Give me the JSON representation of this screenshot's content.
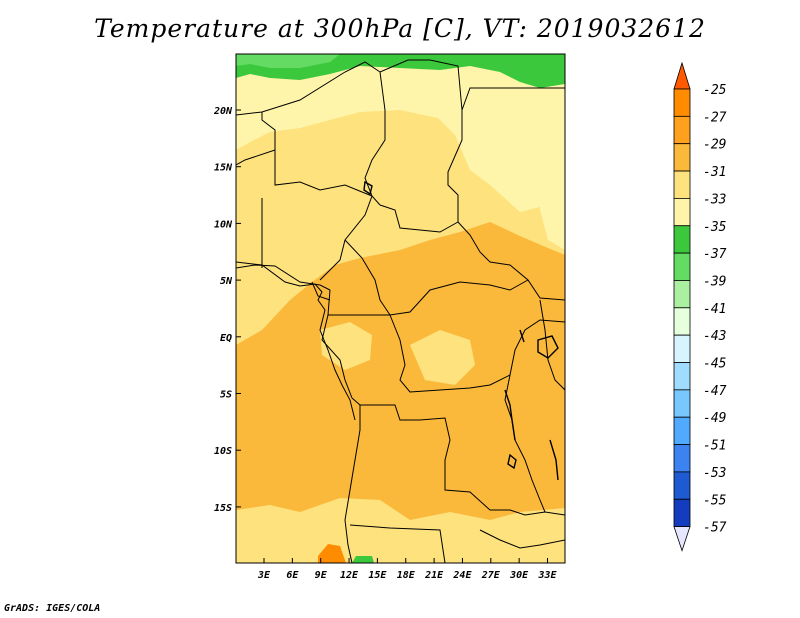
{
  "title": "Temperature at 300hPa [C], VT: 2019032612",
  "credit": "GrADS: IGES/COLA",
  "map": {
    "lat_labels": [
      "20N",
      "15N",
      "10N",
      "5N",
      "EQ",
      "5S",
      "10S",
      "15S"
    ],
    "lon_labels": [
      "3E",
      "6E",
      "9E",
      "12E",
      "15E",
      "18E",
      "21E",
      "24E",
      "27E",
      "30E",
      "33E"
    ]
  },
  "colorbar": {
    "labels": [
      "-25",
      "-27",
      "-29",
      "-31",
      "-33",
      "-35",
      "-37",
      "-39",
      "-41",
      "-43",
      "-45",
      "-47",
      "-49",
      "-51",
      "-53",
      "-55",
      "-57"
    ],
    "colors": [
      "#ff5a00",
      "#ff8c00",
      "#ffa01e",
      "#fbb93c",
      "#fde27e",
      "#fff5aa",
      "#3cc83c",
      "#64dc64",
      "#aaf0a0",
      "#e6ffdc",
      "#d7f5ff",
      "#a0dcff",
      "#78c8ff",
      "#50aaff",
      "#3c82f0",
      "#1e5ad2",
      "#143cbe",
      "#0a1e8c"
    ],
    "top_triangle_color": "#ff5a00",
    "bottom_triangle_color": "#e6e6ff"
  }
}
